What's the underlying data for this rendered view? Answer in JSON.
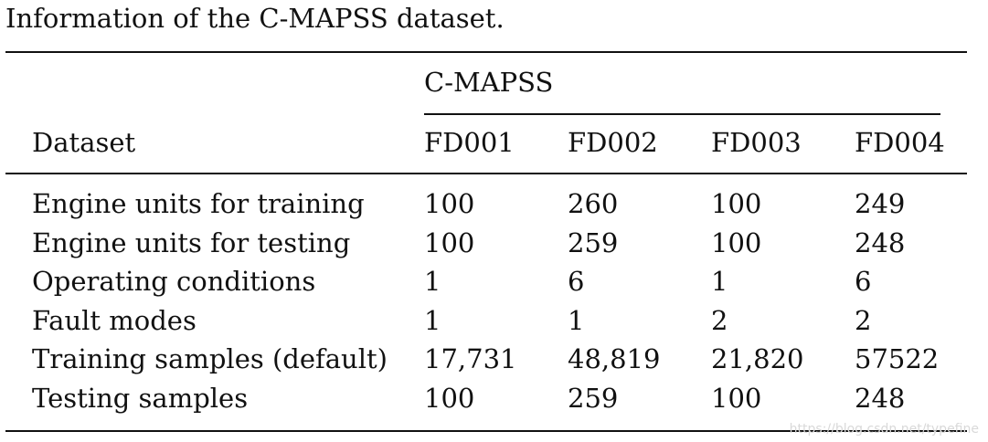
{
  "caption": "Information of the C-MAPSS dataset.",
  "table": {
    "group_header": "C-MAPSS",
    "row_header_label": "Dataset",
    "columns": [
      "FD001",
      "FD002",
      "FD003",
      "FD004"
    ],
    "rows": [
      {
        "label": "Engine units for training",
        "values": [
          "100",
          "260",
          "100",
          "249"
        ]
      },
      {
        "label": "Engine units for testing",
        "values": [
          "100",
          "259",
          "100",
          "248"
        ]
      },
      {
        "label": "Operating conditions",
        "values": [
          "1",
          "6",
          "1",
          "6"
        ]
      },
      {
        "label": "Fault modes",
        "values": [
          "1",
          "1",
          "2",
          "2"
        ]
      },
      {
        "label": "Training samples (default)",
        "values": [
          "17,731",
          "48,819",
          "21,820",
          "57522"
        ]
      },
      {
        "label": "Testing samples",
        "values": [
          "100",
          "259",
          "100",
          "248"
        ]
      }
    ]
  },
  "watermark": "https://blog.csdn.net/typefine"
}
